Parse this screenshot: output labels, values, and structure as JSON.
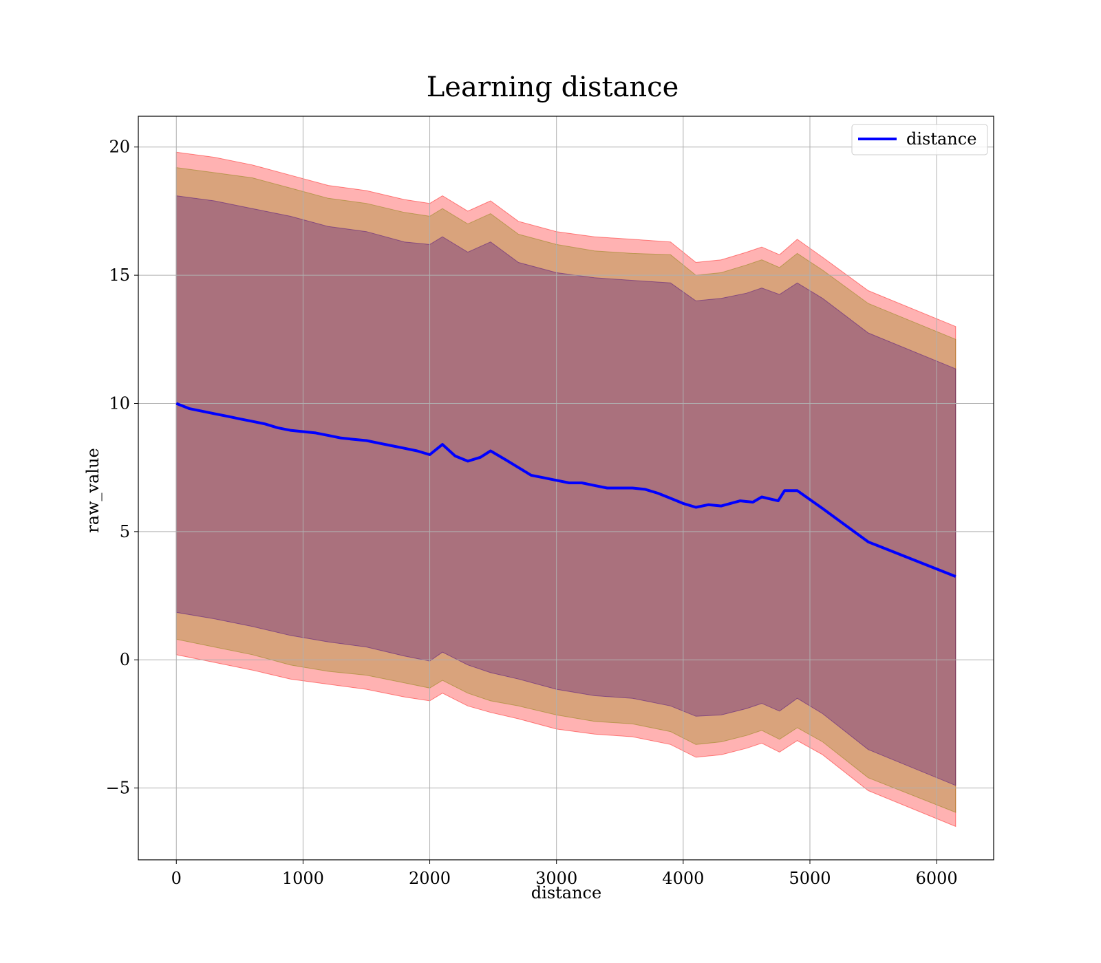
{
  "chart_data": {
    "type": "line",
    "title": "Learning distance",
    "xlabel": "distance",
    "ylabel": "raw_value",
    "xlim": [
      -300,
      6450
    ],
    "ylim": [
      -7.8,
      21.2
    ],
    "xticks": [
      0,
      1000,
      2000,
      3000,
      4000,
      5000,
      6000
    ],
    "yticks": [
      -5,
      0,
      5,
      10,
      15,
      20
    ],
    "ytick_labels": [
      "−5",
      "0",
      "5",
      "10",
      "15",
      "20"
    ],
    "grid": true,
    "legend": {
      "placement": "top-right",
      "entries": [
        "distance"
      ]
    },
    "series": [
      {
        "name": "distance",
        "color": "#0000ff",
        "x": [
          0,
          100,
          200,
          300,
          400,
          500,
          600,
          700,
          800,
          900,
          1000,
          1100,
          1200,
          1300,
          1400,
          1500,
          1600,
          1700,
          1800,
          1900,
          2000,
          2100,
          2200,
          2300,
          2400,
          2480,
          2600,
          2700,
          2800,
          2900,
          3000,
          3100,
          3200,
          3300,
          3400,
          3500,
          3600,
          3700,
          3800,
          3900,
          4000,
          4100,
          4200,
          4300,
          4450,
          4550,
          4620,
          4750,
          4800,
          4900,
          5100,
          5460,
          6150
        ],
        "y": [
          10.0,
          9.8,
          9.7,
          9.6,
          9.5,
          9.4,
          9.3,
          9.2,
          9.05,
          8.95,
          8.9,
          8.85,
          8.75,
          8.65,
          8.6,
          8.55,
          8.45,
          8.35,
          8.25,
          8.15,
          8.0,
          8.4,
          7.95,
          7.75,
          7.9,
          8.15,
          7.8,
          7.5,
          7.2,
          7.1,
          7.0,
          6.9,
          6.9,
          6.8,
          6.7,
          6.7,
          6.7,
          6.65,
          6.5,
          6.3,
          6.1,
          5.95,
          6.05,
          6.0,
          6.2,
          6.15,
          6.35,
          6.2,
          6.6,
          6.6,
          5.9,
          4.6,
          3.25
        ]
      }
    ],
    "bands": [
      {
        "color": "#ff0000",
        "opacity": 0.3,
        "x": [
          0,
          300,
          600,
          900,
          1200,
          1500,
          1800,
          2000,
          2100,
          2300,
          2480,
          2700,
          3000,
          3300,
          3600,
          3900,
          4100,
          4300,
          4500,
          4620,
          4760,
          4900,
          5100,
          5460,
          6150
        ],
        "lower": [
          0.2,
          -0.1,
          -0.4,
          -0.75,
          -0.95,
          -1.15,
          -1.45,
          -1.6,
          -1.3,
          -1.8,
          -2.05,
          -2.3,
          -2.7,
          -2.9,
          -3.0,
          -3.3,
          -3.8,
          -3.7,
          -3.45,
          -3.25,
          -3.6,
          -3.15,
          -3.7,
          -5.1,
          -6.5
        ],
        "upper": [
          19.8,
          19.6,
          19.3,
          18.9,
          18.5,
          18.3,
          17.95,
          17.8,
          18.1,
          17.5,
          17.9,
          17.1,
          16.7,
          16.5,
          16.4,
          16.3,
          15.5,
          15.6,
          15.9,
          16.1,
          15.8,
          16.4,
          15.7,
          14.4,
          13.0
        ]
      },
      {
        "color": "#808000",
        "opacity": 0.3,
        "x": [
          0,
          300,
          600,
          900,
          1200,
          1500,
          1800,
          2000,
          2100,
          2300,
          2480,
          2700,
          3000,
          3300,
          3600,
          3900,
          4100,
          4300,
          4500,
          4620,
          4760,
          4900,
          5100,
          5460,
          6150
        ],
        "lower": [
          0.8,
          0.5,
          0.2,
          -0.2,
          -0.45,
          -0.6,
          -0.9,
          -1.1,
          -0.8,
          -1.3,
          -1.6,
          -1.8,
          -2.15,
          -2.4,
          -2.5,
          -2.8,
          -3.3,
          -3.2,
          -2.95,
          -2.75,
          -3.1,
          -2.65,
          -3.2,
          -4.6,
          -5.95
        ],
        "upper": [
          19.2,
          19.0,
          18.8,
          18.4,
          18.0,
          17.8,
          17.45,
          17.3,
          17.6,
          17.0,
          17.4,
          16.6,
          16.2,
          15.95,
          15.85,
          15.8,
          15.0,
          15.1,
          15.4,
          15.6,
          15.3,
          15.85,
          15.2,
          13.9,
          12.5
        ]
      },
      {
        "color": "#400080",
        "opacity": 0.3,
        "x": [
          0,
          300,
          600,
          900,
          1200,
          1500,
          1800,
          2000,
          2100,
          2300,
          2480,
          2700,
          3000,
          3300,
          3600,
          3900,
          4100,
          4300,
          4500,
          4620,
          4760,
          4900,
          5100,
          5460,
          6150
        ],
        "lower": [
          1.85,
          1.6,
          1.3,
          0.95,
          0.7,
          0.5,
          0.15,
          -0.05,
          0.3,
          -0.2,
          -0.5,
          -0.75,
          -1.15,
          -1.4,
          -1.5,
          -1.8,
          -2.2,
          -2.15,
          -1.9,
          -1.7,
          -2.0,
          -1.5,
          -2.1,
          -3.5,
          -4.9
        ],
        "upper": [
          18.1,
          17.9,
          17.6,
          17.3,
          16.9,
          16.7,
          16.3,
          16.2,
          16.5,
          15.9,
          16.3,
          15.5,
          15.1,
          14.9,
          14.8,
          14.7,
          14.0,
          14.1,
          14.3,
          14.5,
          14.25,
          14.7,
          14.1,
          12.75,
          11.35
        ]
      }
    ]
  }
}
